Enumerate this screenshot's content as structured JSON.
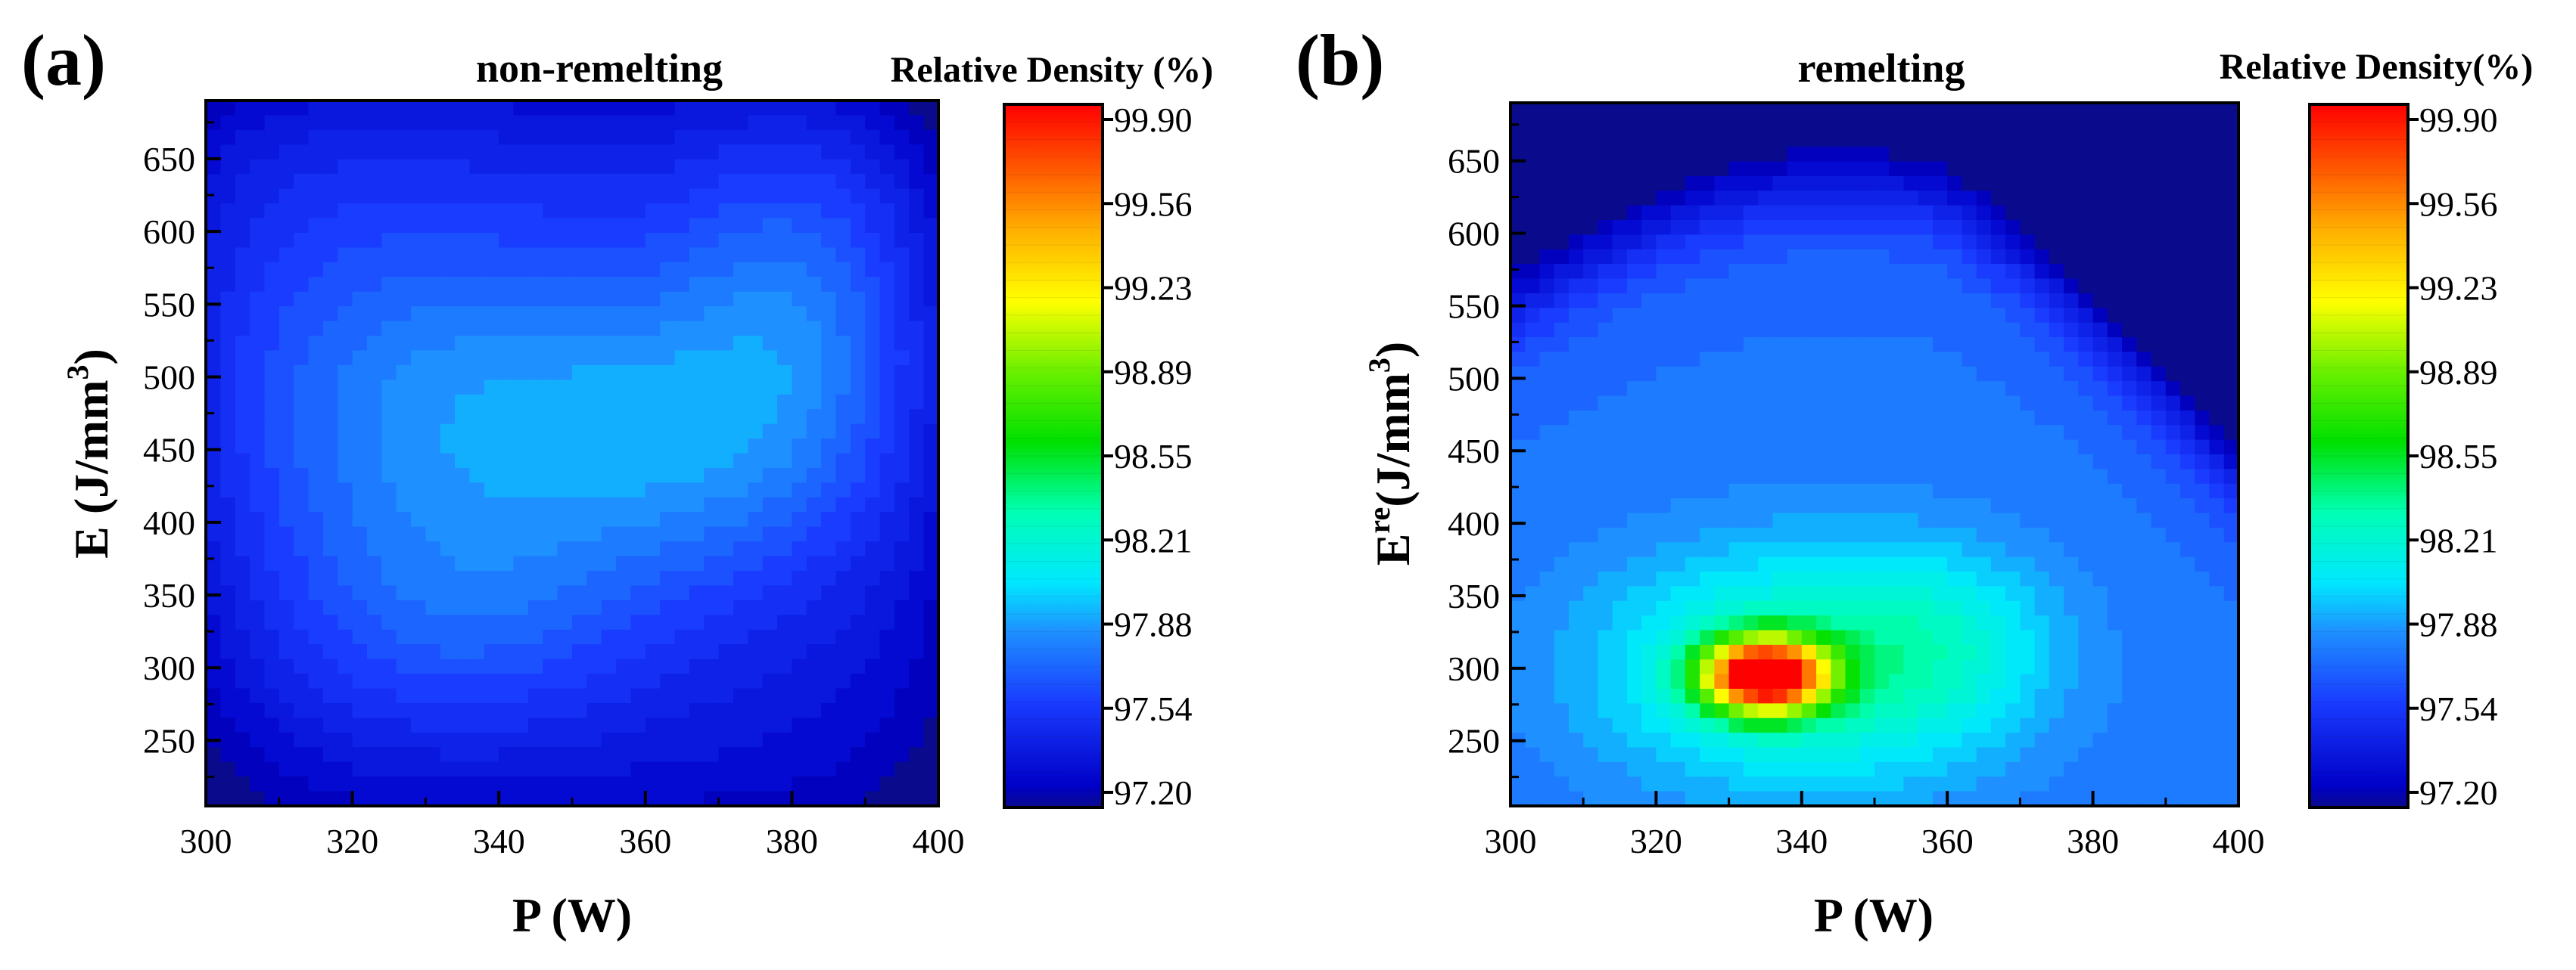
{
  "chart_data": [
    {
      "type": "heatmap",
      "panel_label": "(a)",
      "title": "non-remelting",
      "xlabel": "P (W)",
      "ylabel": "E (J/mm",
      "ylabel_sup": "3",
      "ylabel_end": ")",
      "x_ticks": [
        300,
        320,
        340,
        360,
        380,
        400
      ],
      "y_ticks": [
        250,
        300,
        350,
        400,
        450,
        500,
        550,
        600,
        650
      ],
      "xlim": [
        300,
        400
      ],
      "ylim": [
        205,
        690
      ],
      "colorbar_title": "Relative Density (%)",
      "colorbar_ticks": [
        "99.90",
        "99.56",
        "99.23",
        "98.89",
        "98.55",
        "98.21",
        "97.88",
        "97.54",
        "97.20"
      ],
      "zlim": [
        97.2,
        99.9
      ],
      "baseline": 97.45,
      "peaks": [
        {
          "x": 335,
          "y": 475,
          "dz": 0.42,
          "sx": 28,
          "sy": 90
        },
        {
          "x": 333,
          "y": 330,
          "dz": 0.22,
          "sx": 18,
          "sy": 60
        },
        {
          "x": 382,
          "y": 560,
          "dz": 0.3,
          "sx": 13,
          "sy": 90
        },
        {
          "x": 368,
          "y": 450,
          "dz": 0.22,
          "sx": 18,
          "sy": 70
        },
        {
          "x": 302,
          "y": 640,
          "dz": 0.12,
          "sx": 30,
          "sy": 80
        }
      ]
    },
    {
      "type": "heatmap",
      "panel_label": "(b)",
      "title": "remelting",
      "xlabel": "P (W)",
      "ylabel": "E",
      "ylabel_sup": "re",
      "ylabel_end": "(J/mm",
      "ylabel_sup2": "3",
      "ylabel_end2": ")",
      "x_ticks": [
        300,
        320,
        340,
        360,
        380,
        400
      ],
      "y_ticks": [
        250,
        300,
        350,
        400,
        450,
        500,
        550,
        600,
        650
      ],
      "xlim": [
        300,
        400
      ],
      "ylim": [
        205,
        690
      ],
      "colorbar_title": "Relative Density(%)",
      "colorbar_ticks": [
        "99.90",
        "99.56",
        "99.23",
        "98.89",
        "98.55",
        "98.21",
        "97.88",
        "97.54",
        "97.20"
      ],
      "zlim": [
        97.2,
        99.9
      ],
      "baseline": 97.78,
      "peaks": [
        {
          "x": 335,
          "y": 295,
          "dz": 2.1,
          "sx": 6,
          "sy": 18
        },
        {
          "x": 340,
          "y": 300,
          "dz": 0.55,
          "sx": 20,
          "sy": 60
        },
        {
          "x": 360,
          "y": 320,
          "dz": 0.2,
          "sx": 10,
          "sy": 45
        }
      ]
    }
  ]
}
